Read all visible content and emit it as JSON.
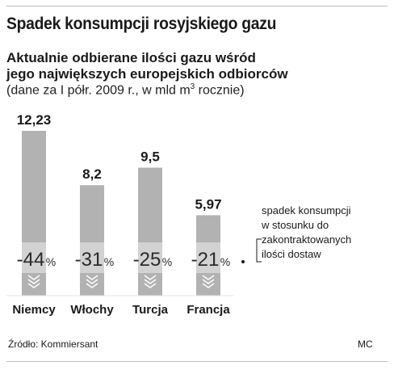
{
  "header": {
    "title": "Spadek konsumpcji rosyjskiego gazu",
    "subtitle_line1": "Aktualnie odbierane ilości gazu wśród",
    "subtitle_line2": "jego największych europejskich odbiorców",
    "note_prefix": "(dane za I półr. 2009 r., w mld m",
    "note_sup": "3",
    "note_suffix": " rocznie)"
  },
  "chart_data": {
    "type": "bar",
    "categories": [
      "Niemcy",
      "Włochy",
      "Turcja",
      "Francja"
    ],
    "values": [
      12.23,
      8.2,
      9.5,
      5.97
    ],
    "value_labels": [
      "12,23",
      "8,2",
      "9,5",
      "5,97"
    ],
    "changes": [
      -44,
      -31,
      -25,
      -21
    ],
    "change_labels": [
      "-44",
      "-31",
      "-25",
      "-21"
    ],
    "change_unit": "%",
    "bar_color": "#b2b2b2",
    "label_band_color": "#d2d2d2"
  },
  "legend": {
    "lines": [
      "spadek konsumpcji",
      "w stosunku do",
      "zakontraktowanych",
      "ilości dostaw"
    ]
  },
  "footer": {
    "source": "Źródło: Kommiersant",
    "credit": "MC"
  }
}
